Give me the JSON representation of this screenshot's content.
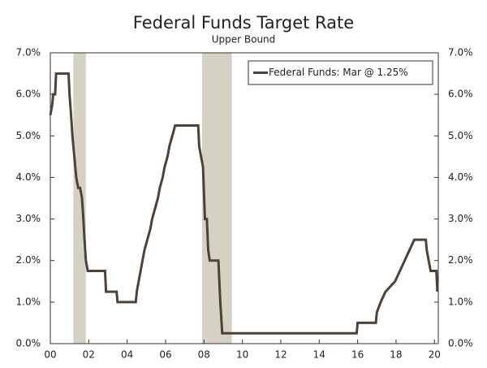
{
  "chart_data": {
    "type": "line",
    "title": "Federal Funds Target Rate",
    "subtitle": "Upper Bound",
    "x": [
      2000.0,
      2000.1,
      2000.15,
      2000.25,
      2000.3,
      2000.95,
      2001.0,
      2001.08,
      2001.15,
      2001.25,
      2001.35,
      2001.45,
      2001.55,
      2001.65,
      2001.72,
      2001.78,
      2001.85,
      2001.95,
      2002.85,
      2002.9,
      2003.45,
      2003.5,
      2004.45,
      2004.5,
      2004.6,
      2004.7,
      2004.8,
      2004.9,
      2005.05,
      2005.2,
      2005.3,
      2005.45,
      2005.6,
      2005.7,
      2005.85,
      2005.95,
      2006.1,
      2006.2,
      2006.35,
      2006.5,
      2007.7,
      2007.75,
      2007.85,
      2007.95,
      2008.05,
      2008.15,
      2008.22,
      2008.3,
      2008.75,
      2008.8,
      2008.85,
      2008.95,
      2015.95,
      2016.0,
      2016.95,
      2017.0,
      2017.2,
      2017.45,
      2017.95,
      2018.2,
      2018.45,
      2018.7,
      2018.95,
      2019.55,
      2019.6,
      2019.7,
      2019.8,
      2020.1,
      2020.15
    ],
    "series": [
      {
        "name": "Federal Funds: Mar @ 1.25%",
        "color": "#4e4238",
        "values": [
          5.5,
          5.75,
          6.0,
          6.0,
          6.5,
          6.5,
          6.0,
          5.5,
          5.0,
          4.5,
          4.0,
          3.75,
          3.75,
          3.5,
          3.0,
          2.5,
          2.0,
          1.75,
          1.75,
          1.25,
          1.25,
          1.0,
          1.0,
          1.25,
          1.5,
          1.75,
          2.0,
          2.25,
          2.5,
          2.75,
          3.0,
          3.25,
          3.5,
          3.75,
          4.0,
          4.25,
          4.5,
          4.75,
          5.0,
          5.25,
          5.25,
          4.75,
          4.5,
          4.25,
          3.0,
          3.0,
          2.25,
          2.0,
          2.0,
          1.5,
          1.0,
          0.25,
          0.25,
          0.5,
          0.5,
          0.75,
          1.0,
          1.25,
          1.5,
          1.75,
          2.0,
          2.25,
          2.5,
          2.5,
          2.25,
          2.0,
          1.75,
          1.75,
          1.25
        ]
      }
    ],
    "recessions": [
      [
        2001.2,
        2001.85
      ],
      [
        2007.9,
        2009.45
      ]
    ],
    "recession_color": "#d5d1c5",
    "xlim": [
      2000,
      2020.2
    ],
    "xticks": [
      {
        "value": 2000,
        "label": "00"
      },
      {
        "value": 2002,
        "label": "02"
      },
      {
        "value": 2004,
        "label": "04"
      },
      {
        "value": 2006,
        "label": "06"
      },
      {
        "value": 2008,
        "label": "08"
      },
      {
        "value": 2010,
        "label": "10"
      },
      {
        "value": 2012,
        "label": "12"
      },
      {
        "value": 2014,
        "label": "14"
      },
      {
        "value": 2016,
        "label": "16"
      },
      {
        "value": 2018,
        "label": "18"
      },
      {
        "value": 2020,
        "label": "20"
      }
    ],
    "ylim": [
      0,
      7
    ],
    "yticks": [
      {
        "value": 0,
        "label": "0.0%"
      },
      {
        "value": 1,
        "label": "1.0%"
      },
      {
        "value": 2,
        "label": "2.0%"
      },
      {
        "value": 3,
        "label": "3.0%"
      },
      {
        "value": 4,
        "label": "4.0%"
      },
      {
        "value": 5,
        "label": "5.0%"
      },
      {
        "value": 6,
        "label": "6.0%"
      },
      {
        "value": 7,
        "label": "7.0%"
      }
    ],
    "grid": false,
    "legend": "upper right"
  }
}
